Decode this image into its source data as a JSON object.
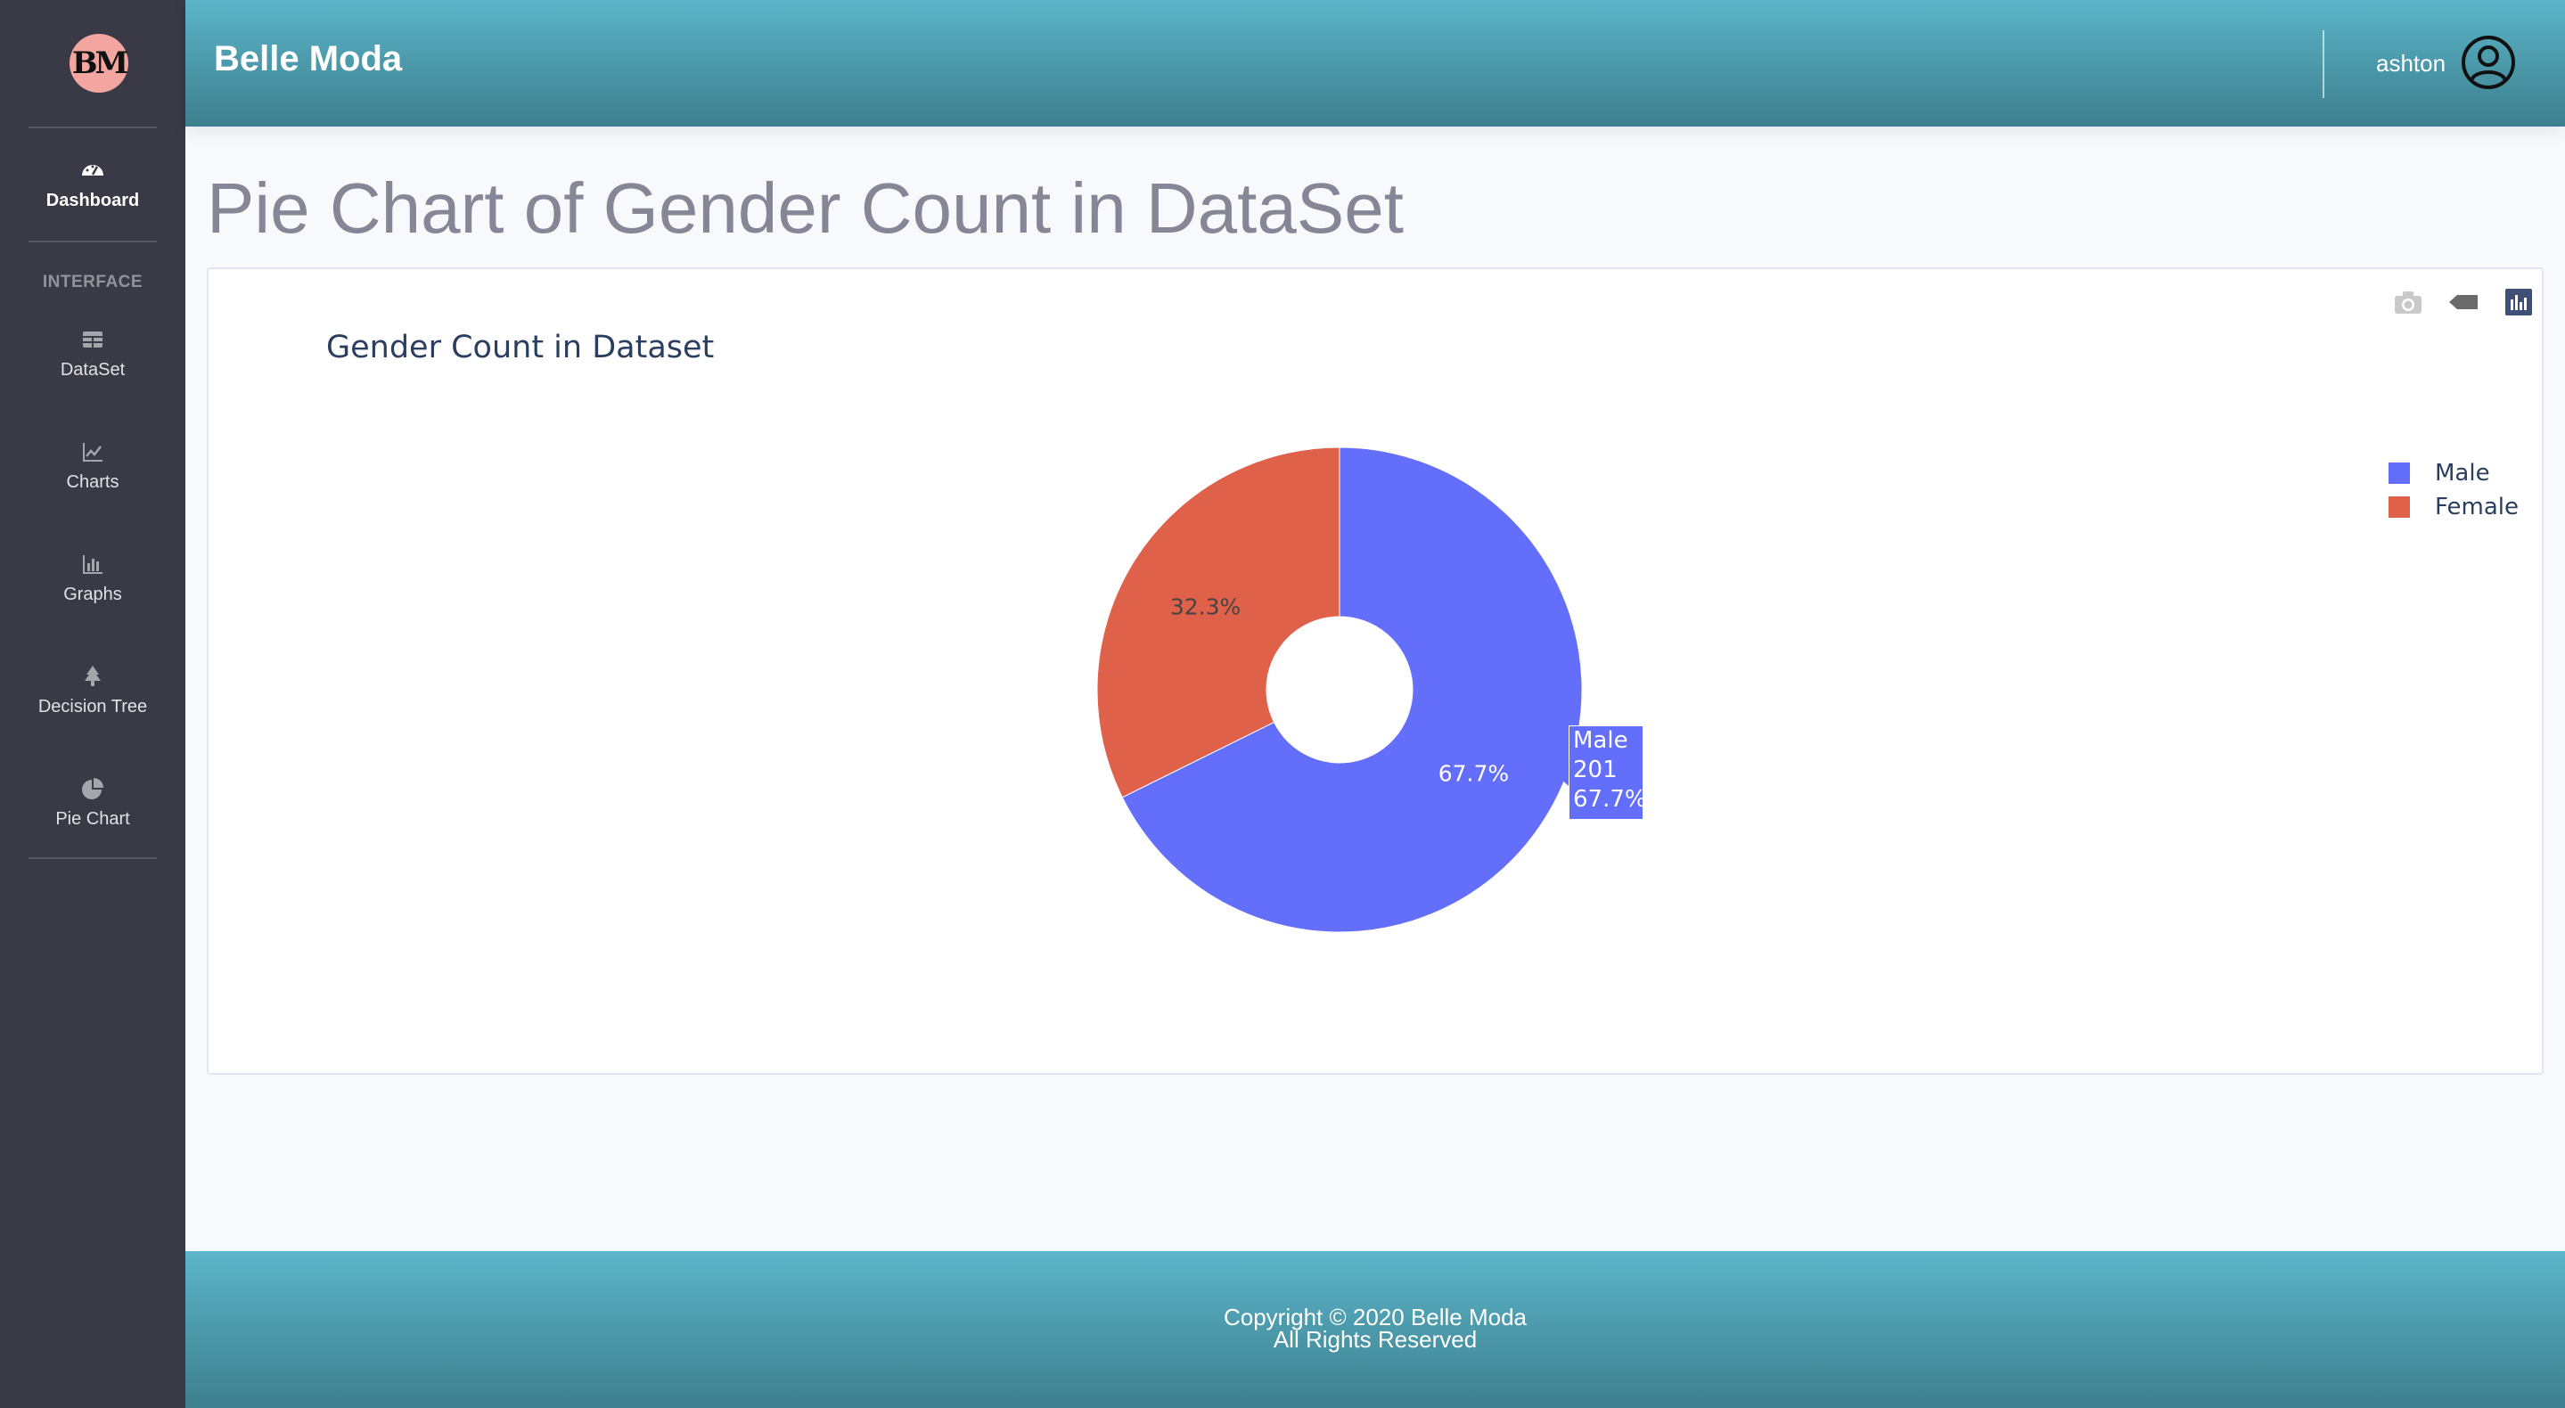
{
  "sidebar": {
    "logo_text": "BM",
    "items": [
      {
        "label": "Dashboard",
        "icon": "tachometer-icon"
      },
      {
        "label": "DataSet",
        "icon": "table-icon"
      },
      {
        "label": "Charts",
        "icon": "line-chart-icon"
      },
      {
        "label": "Graphs",
        "icon": "bar-chart-icon"
      },
      {
        "label": "Decision Tree",
        "icon": "tree-icon"
      },
      {
        "label": "Pie Chart",
        "icon": "pie-chart-icon"
      }
    ],
    "heading_interface": "INTERFACE"
  },
  "topbar": {
    "app_title": "Belle Moda",
    "user_name": "ashton",
    "user_icon": "user-circle-icon"
  },
  "page": {
    "title": "Pie Chart of Gender Count in DataSet"
  },
  "modebar": {
    "icons": [
      "camera-icon",
      "tag-icon",
      "plotly-logo-icon"
    ]
  },
  "chart_data": {
    "type": "pie",
    "title": "Gender Count in Dataset",
    "hole": true,
    "labels": [
      "Male",
      "Female"
    ],
    "values": [
      201,
      96
    ],
    "percent_labels": [
      "67.7%",
      "32.3%"
    ],
    "colors": [
      "#636efa",
      "#ef553b"
    ],
    "legend_position": "top-right",
    "hover": {
      "label": "Male",
      "value": "201",
      "percent": "67.7%"
    }
  },
  "footer": {
    "line1": "Copyright © 2020 Belle Moda",
    "line2": "All Rights Reserved"
  },
  "colors": {
    "sidebar_bg": "#393a45",
    "header_accent": "#4a97a8",
    "male": "#636efa",
    "female": "#e0614a"
  }
}
